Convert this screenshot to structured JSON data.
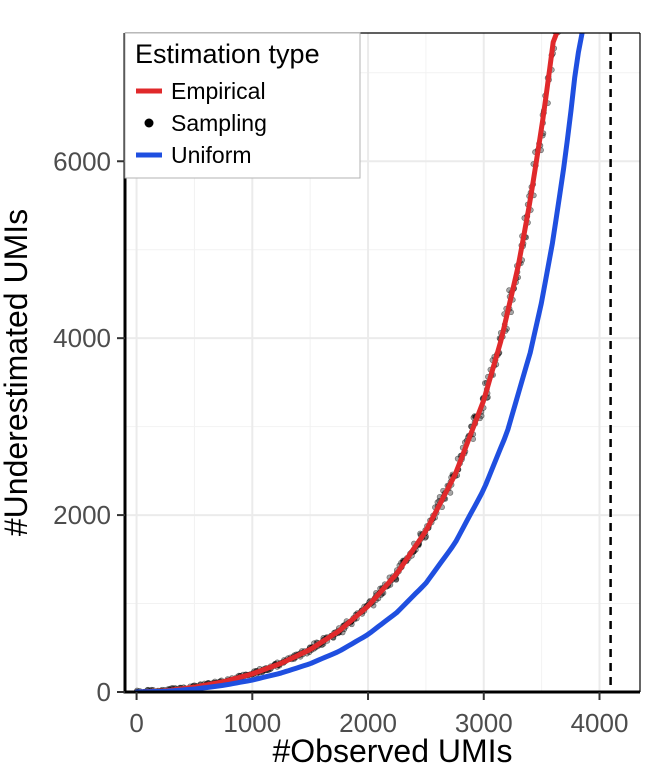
{
  "chart_data": {
    "type": "line",
    "xlabel": "#Observed UMIs",
    "ylabel": "#Underestimated UMIs",
    "xlim": [
      -100,
      4350
    ],
    "ylim": [
      0,
      7450
    ],
    "x_ticks": [
      0,
      1000,
      2000,
      3000,
      4000
    ],
    "y_ticks": [
      0,
      2000,
      4000,
      6000
    ],
    "grid": true,
    "legend": {
      "title": "Estimation type",
      "position": "top-left",
      "entries": [
        {
          "label": "Empirical",
          "kind": "line",
          "color": "#e0292b"
        },
        {
          "label": "Sampling",
          "kind": "point",
          "color": "#000000"
        },
        {
          "label": "Uniform",
          "kind": "line",
          "color": "#1f4fe0"
        }
      ]
    },
    "series": [
      {
        "name": "Empirical",
        "kind": "line",
        "color": "#e0292b",
        "x": [
          0,
          250,
          500,
          750,
          1000,
          1250,
          1500,
          1750,
          2000,
          2250,
          2500,
          2750,
          3000,
          3150,
          3300,
          3400,
          3500,
          3550,
          3600,
          3630
        ],
        "y": [
          0,
          13,
          55,
          115,
          205,
          325,
          480,
          690,
          970,
          1340,
          1820,
          2450,
          3300,
          3980,
          4830,
          5550,
          6380,
          6850,
          7350,
          7450
        ]
      },
      {
        "name": "Sampling",
        "kind": "scatter",
        "color": "#000000",
        "x": [
          0,
          250,
          500,
          750,
          1000,
          1250,
          1500,
          1750,
          2000,
          2250,
          2500,
          2750,
          3000,
          3150,
          3300,
          3400,
          3500,
          3550,
          3600,
          3630
        ],
        "y": [
          0,
          13,
          55,
          115,
          205,
          325,
          480,
          690,
          970,
          1340,
          1820,
          2450,
          3300,
          3980,
          4830,
          5550,
          6380,
          6850,
          7350,
          7450
        ]
      },
      {
        "name": "Uniform",
        "kind": "line",
        "color": "#1f4fe0",
        "x": [
          0,
          250,
          500,
          750,
          1000,
          1250,
          1500,
          1750,
          2000,
          2250,
          2500,
          2750,
          3000,
          3200,
          3400,
          3500,
          3600,
          3700,
          3750,
          3800,
          3850
        ],
        "y": [
          0,
          8,
          33,
          75,
          135,
          215,
          320,
          460,
          650,
          900,
          1230,
          1680,
          2290,
          2930,
          3830,
          4410,
          5120,
          6010,
          6530,
          7110,
          7450
        ]
      }
    ],
    "reference_lines": [
      {
        "orientation": "vertical",
        "x": 4096,
        "style": "dashed",
        "color": "#000000"
      }
    ]
  }
}
